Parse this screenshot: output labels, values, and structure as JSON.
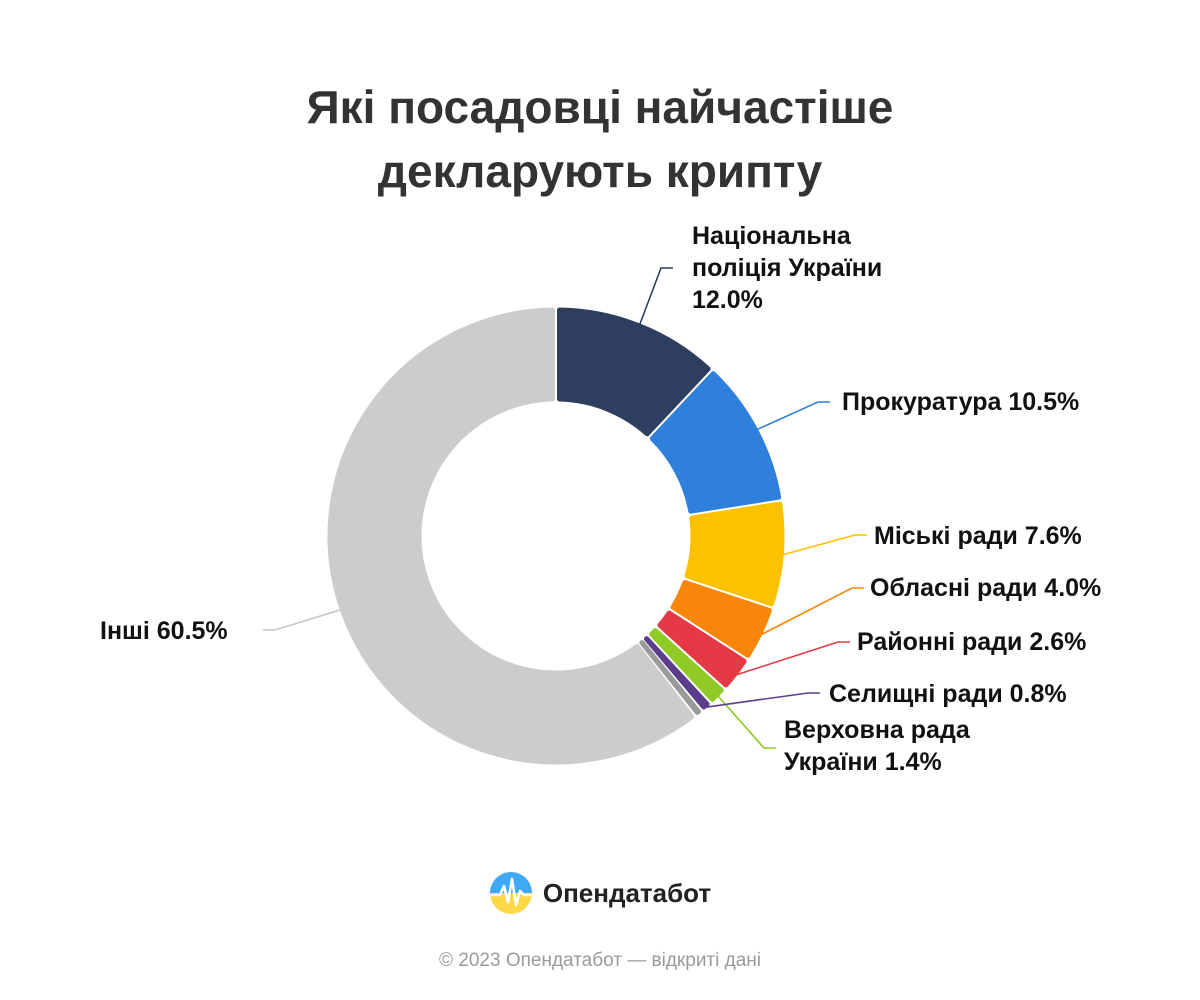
{
  "title": {
    "line1": "Які посадовці найчастіше",
    "line2": "декларують крипту"
  },
  "chart_data": {
    "type": "pie",
    "variant": "donut",
    "title": "Які посадовці найчастіше декларують крипту",
    "unit": "%",
    "slices": [
      {
        "label": "Національна поліція України",
        "value": 12.0,
        "color": "#2d3e5e",
        "display": [
          "Національна",
          "поліція України",
          "12.0%"
        ]
      },
      {
        "label": "Прокуратура",
        "value": 10.5,
        "color": "#2f80dc",
        "display": [
          "Прокуратура 10.5%"
        ]
      },
      {
        "label": "Міські ради",
        "value": 7.6,
        "color": "#fcc200",
        "display": [
          "Міські ради 7.6%"
        ]
      },
      {
        "label": "Обласні ради",
        "value": 4.0,
        "color": "#f7860a",
        "display": [
          "Обласні ради 4.0%"
        ]
      },
      {
        "label": "Районні ради",
        "value": 2.6,
        "color": "#e63946",
        "display": [
          "Районні ради 2.6%"
        ]
      },
      {
        "label": "Верховна рада України",
        "value": 1.4,
        "color": "#8fca27",
        "display": [
          "Верховна рада",
          "України 1.4%"
        ]
      },
      {
        "label": "Селищні ради",
        "value": 0.8,
        "color": "#5b3d8a",
        "display": [
          "Селищні ради 0.8%"
        ]
      },
      {
        "label": "",
        "value": 0.6,
        "color": "#9a9a9a",
        "display": []
      },
      {
        "label": "Інші",
        "value": 60.5,
        "color": "#cccccc",
        "display": [
          "Інші 60.5%"
        ]
      }
    ],
    "start_angle_deg": 0,
    "direction": "clockwise",
    "legend": "none"
  },
  "brand": {
    "name": "Опендатабот",
    "icon": "opendatabot-logo-icon"
  },
  "footer": "© 2023 Опендатабот — відкриті дані"
}
